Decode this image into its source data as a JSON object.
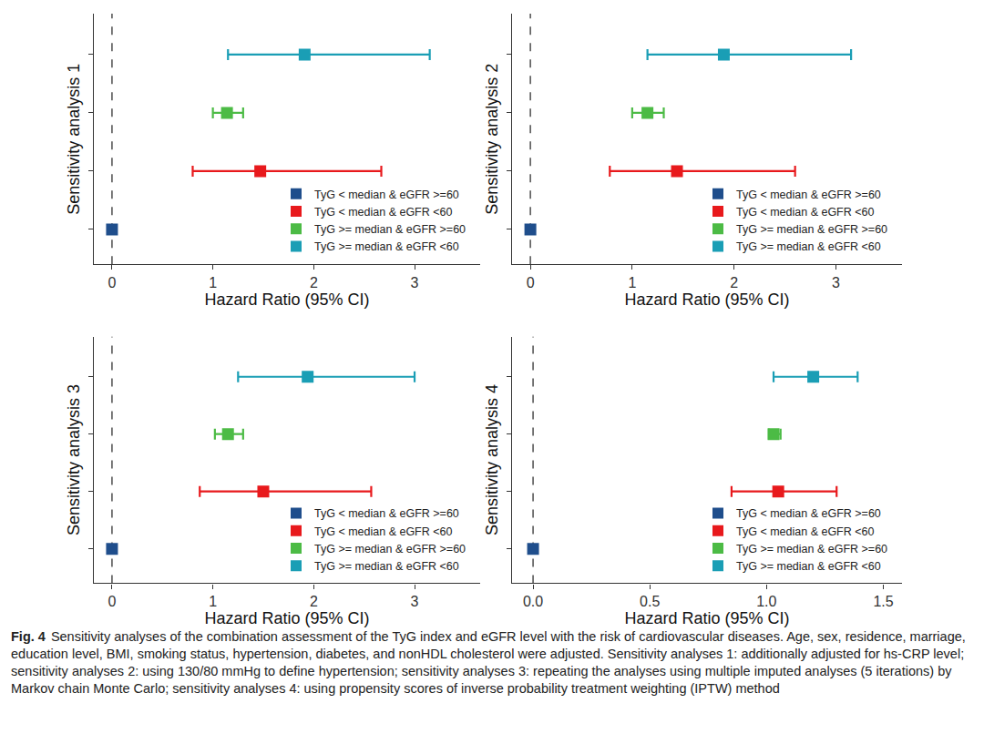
{
  "figure": {
    "label": "Fig. 4",
    "caption": "Sensitivity analyses of the combination assessment of the TyG index and eGFR level with the risk of cardiovascular diseases. Age, sex, residence, marriage, education level, BMI, smoking status, hypertension, diabetes, and nonHDL cholesterol were adjusted. Sensitivity analyses 1: additionally adjusted for hs-CRP level; sensitivity analyses 2: using 130/80 mmHg to define hypertension; sensitivity analyses 3: repeating the analyses using multiple imputed analyses (5 iterations) by Markov chain Monte Carlo; sensitivity analyses 4: using propensity scores of inverse probability treatment weighting (IPTW) method"
  },
  "chart_data": [
    {
      "type": "forest",
      "y_label": "Sensitivity analysis 1",
      "x_label": "Hazard Ratio (95% CI)",
      "xlim": [
        -0.18,
        3.65
      ],
      "xticks": [
        0,
        1,
        2,
        3
      ],
      "reference_line": 0,
      "legend": "lower right",
      "tick_labels": "x",
      "grid": false,
      "marker": "square",
      "series": [
        {
          "name": "TyG < median & eGFR >=60",
          "color": "#1f4e8c",
          "value": 0
        },
        {
          "name": "TyG < median & eGFR <60",
          "color": "#e8191c",
          "value": 1.47,
          "ci": [
            0.8,
            2.67
          ]
        },
        {
          "name": "TyG >= median & eGFR >=60",
          "color": "#4cbb45",
          "value": 1.14,
          "ci": [
            1.0,
            1.3
          ]
        },
        {
          "name": "TyG >= median & eGFR <60",
          "color": "#1a9eb5",
          "value": 1.91,
          "ci": [
            1.15,
            3.15
          ]
        }
      ]
    },
    {
      "type": "forest",
      "y_label": "Sensitivity analysis 2",
      "x_label": "Hazard Ratio (95% CI)",
      "xlim": [
        -0.18,
        3.65
      ],
      "xticks": [
        0,
        1,
        2,
        3
      ],
      "reference_line": 0,
      "legend": "lower right",
      "tick_labels": "x",
      "grid": false,
      "marker": "square",
      "series": [
        {
          "name": "TyG < median & eGFR >=60",
          "color": "#1f4e8c",
          "value": 0
        },
        {
          "name": "TyG < median & eGFR <60",
          "color": "#e8191c",
          "value": 1.44,
          "ci": [
            0.78,
            2.6
          ]
        },
        {
          "name": "TyG >= median & eGFR >=60",
          "color": "#4cbb45",
          "value": 1.15,
          "ci": [
            1.0,
            1.31
          ]
        },
        {
          "name": "TyG >= median & eGFR <60",
          "color": "#1a9eb5",
          "value": 1.9,
          "ci": [
            1.15,
            3.15
          ]
        }
      ]
    },
    {
      "type": "forest",
      "y_label": "Sensitivity analysis 3",
      "x_label": "Hazard Ratio (95% CI)",
      "xlim": [
        -0.18,
        3.65
      ],
      "xticks": [
        0,
        1,
        2,
        3
      ],
      "reference_line": 0,
      "legend": "lower right",
      "tick_labels": "x",
      "grid": false,
      "marker": "square",
      "series": [
        {
          "name": "TyG < median & eGFR >=60",
          "color": "#1f4e8c",
          "value": 0
        },
        {
          "name": "TyG < median & eGFR <60",
          "color": "#e8191c",
          "value": 1.5,
          "ci": [
            0.87,
            2.57
          ]
        },
        {
          "name": "TyG >= median & eGFR >=60",
          "color": "#4cbb45",
          "value": 1.15,
          "ci": [
            1.02,
            1.3
          ]
        },
        {
          "name": "TyG >= median & eGFR <60",
          "color": "#1a9eb5",
          "value": 1.94,
          "ci": [
            1.25,
            3.0
          ]
        }
      ]
    },
    {
      "type": "forest",
      "y_label": "Sensitivity analysis 4",
      "x_label": "Hazard Ratio (95% CI)",
      "xlim": [
        -0.09,
        1.58
      ],
      "xticks": [
        {
          "value": 0,
          "label": "0.0"
        },
        0.5,
        {
          "value": 1,
          "label": "1.0"
        },
        1.5
      ],
      "reference_line": 0,
      "legend": "lower right",
      "tick_labels": "x",
      "grid": false,
      "marker": "square",
      "series": [
        {
          "name": "TyG < median & eGFR >=60",
          "color": "#1f4e8c",
          "value": 0
        },
        {
          "name": "TyG < median & eGFR <60",
          "color": "#e8191c",
          "value": 1.05,
          "ci": [
            0.85,
            1.3
          ]
        },
        {
          "name": "TyG >= median & eGFR >=60",
          "color": "#4cbb45",
          "value": 1.03,
          "ci": [
            1.01,
            1.06
          ]
        },
        {
          "name": "TyG >= median & eGFR <60",
          "color": "#1a9eb5",
          "value": 1.2,
          "ci": [
            1.03,
            1.39
          ]
        }
      ]
    }
  ]
}
